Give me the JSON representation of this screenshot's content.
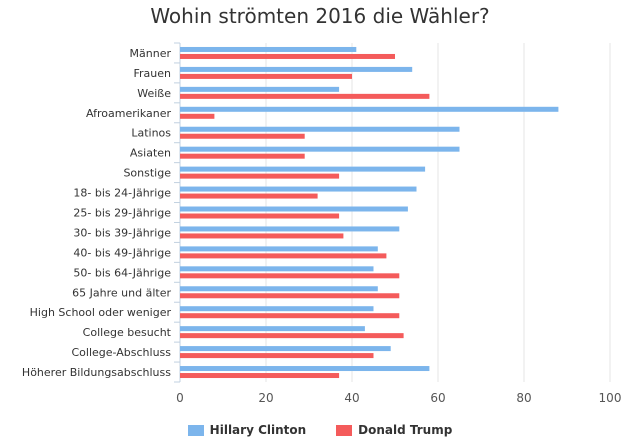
{
  "chart_data": {
    "type": "bar",
    "orientation": "horizontal",
    "title": "Wohin strömten 2016 die Wähler?",
    "categories": [
      "Männer",
      "Frauen",
      "Weiße",
      "Afroamerikaner",
      "Latinos",
      "Asiaten",
      "Sonstige",
      "18- bis 24-Jährige",
      "25- bis 29-Jährige",
      "30- bis 39-Jährige",
      "40- bis 49-Jährige",
      "50- bis 64-Jährige",
      "65 Jahre und älter",
      "High School oder weniger",
      "College besucht",
      "College-Abschluss",
      "Höherer Bildungsabschluss"
    ],
    "series": [
      {
        "name": "Hillary Clinton",
        "color": "#7cb5ec",
        "values": [
          41,
          54,
          37,
          88,
          65,
          65,
          57,
          55,
          53,
          51,
          46,
          45,
          46,
          45,
          43,
          49,
          58
        ]
      },
      {
        "name": "Donald Trump",
        "color": "#f45b5b",
        "values": [
          50,
          40,
          58,
          8,
          29,
          29,
          37,
          32,
          37,
          38,
          48,
          51,
          51,
          51,
          52,
          45,
          37
        ]
      }
    ],
    "xlim": [
      0,
      100
    ],
    "xticks": [
      0,
      20,
      40,
      60,
      80,
      100
    ],
    "grid": true,
    "legend_position": "bottom-center"
  }
}
